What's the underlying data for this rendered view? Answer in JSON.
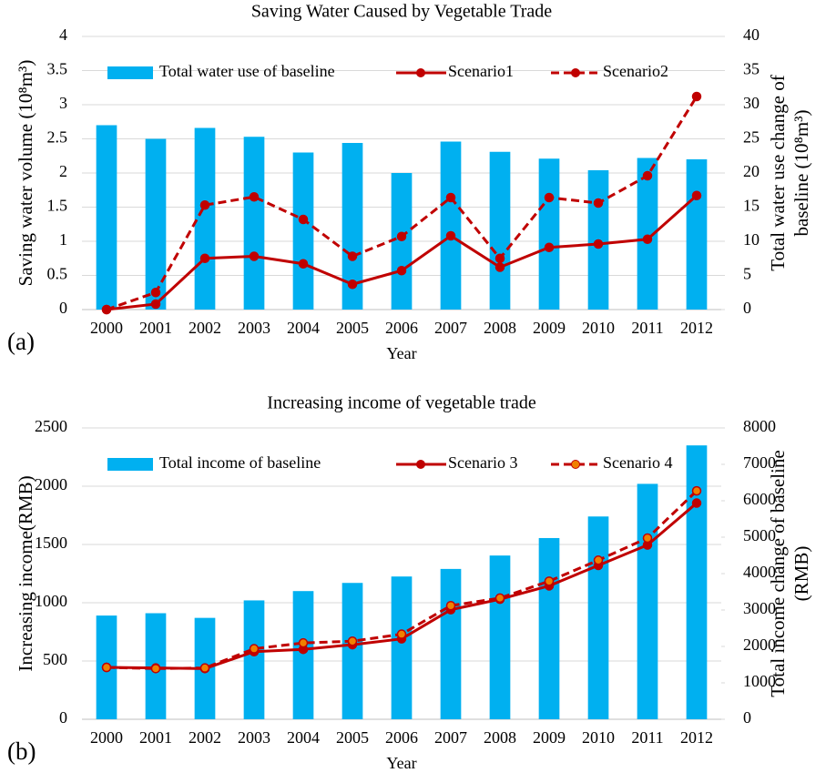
{
  "chart_data": [
    {
      "type": "bar-line",
      "label": "(a)",
      "title": "Saving Water Caused by Vegetable Trade",
      "xlabel": "Year",
      "ylabel": "Saving water volume (10⁸m³)",
      "y2label": [
        "Total water use change of",
        "baseline (10⁸m³)"
      ],
      "categories": [
        "2000",
        "2001",
        "2002",
        "2003",
        "2004",
        "2005",
        "2006",
        "2007",
        "2008",
        "2009",
        "2010",
        "2011",
        "2012"
      ],
      "series": [
        {
          "name": "Total water use of baseline",
          "kind": "bar",
          "axis": "y2",
          "color": "#00b0f0",
          "values": [
            27,
            25,
            26.6,
            25.3,
            23,
            24.4,
            20,
            24.6,
            23.1,
            22.1,
            20.4,
            22.2,
            22
          ]
        },
        {
          "name": "Scenario1",
          "kind": "line",
          "color": "#c00000",
          "dashed": false,
          "values": [
            0,
            0.08,
            0.75,
            0.78,
            0.67,
            0.37,
            0.57,
            1.08,
            0.62,
            0.91,
            0.96,
            1.03,
            1.67
          ]
        },
        {
          "name": "Scenario2",
          "kind": "line",
          "color": "#c00000",
          "dashed": true,
          "values": [
            0,
            0.25,
            1.53,
            1.65,
            1.32,
            0.78,
            1.07,
            1.64,
            0.75,
            1.64,
            1.56,
            1.96,
            3.12
          ]
        }
      ],
      "ylim": [
        0,
        4
      ],
      "yticks": [
        0,
        0.5,
        1,
        1.5,
        2,
        2.5,
        3,
        3.5,
        4
      ],
      "y2lim": [
        0,
        40
      ],
      "y2ticks": [
        0,
        5,
        10,
        15,
        20,
        25,
        30,
        35,
        40
      ],
      "grid": true,
      "legend": "top"
    },
    {
      "type": "bar-line",
      "label": "(b)",
      "title": "Increasing income of vegetable trade",
      "xlabel": "Year",
      "ylabel": "Increasing income(RMB)",
      "y2label": [
        "Total income change of baseline",
        "(RMB)"
      ],
      "categories": [
        "2000",
        "2001",
        "2002",
        "2003",
        "2004",
        "2005",
        "2006",
        "2007",
        "2008",
        "2009",
        "2010",
        "2011",
        "2012"
      ],
      "series": [
        {
          "name": "Total income of baseline",
          "kind": "bar",
          "axis": "y2",
          "color": "#00b0f0",
          "values": [
            2848,
            2912,
            2784,
            3264,
            3520,
            3744,
            3920,
            4128,
            4496,
            4976,
            5568,
            6464,
            7520
          ]
        },
        {
          "name": "Scenario 3",
          "kind": "line",
          "color": "#c00000",
          "dashed": false,
          "values": [
            445,
            440,
            435,
            580,
            600,
            640,
            690,
            940,
            1030,
            1145,
            1320,
            1495,
            1855
          ]
        },
        {
          "name": "Scenario 4",
          "kind": "line",
          "color": "#c00000",
          "dashed": true,
          "marker_color": "#f08000",
          "values": [
            445,
            435,
            440,
            605,
            655,
            670,
            730,
            975,
            1040,
            1185,
            1365,
            1555,
            1960
          ]
        }
      ],
      "ylim": [
        0,
        2500
      ],
      "yticks": [
        0,
        500,
        1000,
        1500,
        2000,
        2500
      ],
      "y2lim": [
        0,
        8000
      ],
      "y2ticks": [
        0,
        1000,
        2000,
        3000,
        4000,
        5000,
        6000,
        7000,
        8000
      ],
      "grid": true,
      "legend": "top"
    }
  ]
}
